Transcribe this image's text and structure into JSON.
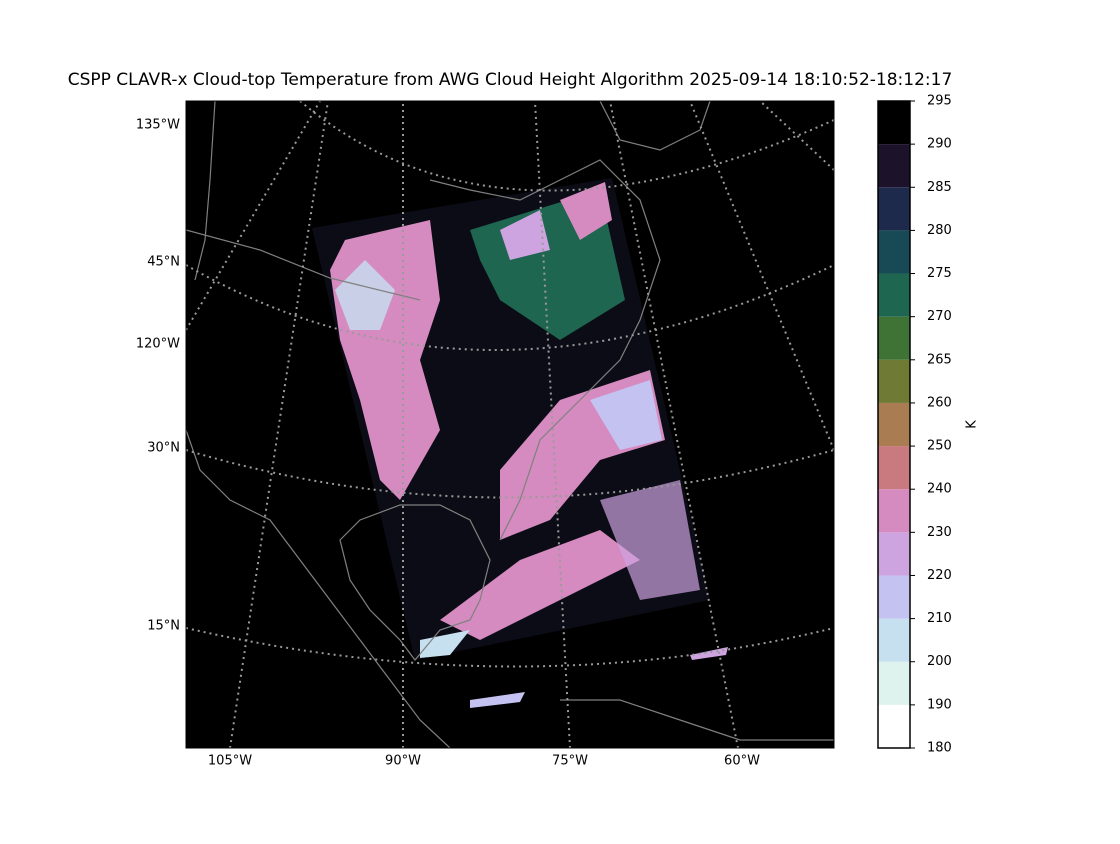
{
  "title": "CSPP CLAVR-x Cloud-top Temperature from AWG Cloud Height Algorithm 2025-09-14 18:10:52-18:12:17",
  "map": {
    "lon_labels": [
      "105°W",
      "90°W",
      "75°W",
      "60°W"
    ],
    "lat_labels": [
      "135°W",
      "45°N",
      "120°W",
      "30°N",
      "15°N"
    ]
  },
  "colorbar": {
    "label": "K",
    "ticks": [
      180,
      190,
      200,
      210,
      220,
      230,
      240,
      250,
      260,
      265,
      270,
      275,
      280,
      285,
      290,
      295
    ],
    "colors": [
      "#ffffff",
      "#dff3ee",
      "#c6e0f0",
      "#c4c2f0",
      "#cda3e0",
      "#d58bbf",
      "#c87a7e",
      "#a97c52",
      "#6f7a35",
      "#3f7336",
      "#1f6650",
      "#174a54",
      "#1d2a4b",
      "#1c1229",
      "#000000"
    ]
  }
}
